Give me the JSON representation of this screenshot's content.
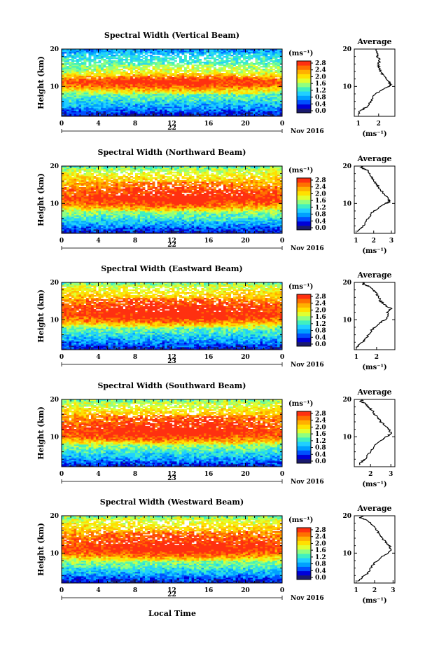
{
  "figure": {
    "xlabel_bottom": "Local Time",
    "date_label": "Nov 2016",
    "colorbar_unit": "(ms⁻¹)",
    "profile_title": "Average",
    "profile_xlabel": "(ms⁻¹)",
    "height_label": "Height (km)"
  },
  "colorbar": {
    "ticks": [
      "0.0",
      "0.4",
      "0.8",
      "1.2",
      "1.6",
      "2.0",
      "2.4",
      "2.8"
    ],
    "colors": [
      "#1a1a6e",
      "#0000d8",
      "#0050ff",
      "#00a0ff",
      "#20d0ff",
      "#40f0c0",
      "#90ff80",
      "#e0ff30",
      "#ffe000",
      "#ffb000",
      "#ff7000",
      "#ff3010"
    ]
  },
  "chart_data": [
    {
      "type": "heatmap",
      "title": "Spectral Width (Vertical Beam)",
      "xlabel": "",
      "ylabel": "Height (km)",
      "x_ticks": [
        "0",
        "4",
        "8",
        "12",
        "16",
        "20",
        "0"
      ],
      "x_day": "22",
      "y_ticks": [
        "20",
        "10"
      ],
      "xlim": [
        0,
        24
      ],
      "ylim": [
        2,
        20
      ],
      "value_profile": [
        [
          2,
          0.2
        ],
        [
          4,
          0.8
        ],
        [
          6,
          1.2
        ],
        [
          8,
          1.5
        ],
        [
          9.5,
          2.2
        ],
        [
          11,
          2.8
        ],
        [
          12,
          2.6
        ],
        [
          14,
          1.7
        ],
        [
          16,
          1.5
        ],
        [
          18,
          1.3
        ],
        [
          20,
          0.8
        ]
      ],
      "profile": {
        "title": "Average",
        "xlabel": "(ms⁻¹)",
        "x_ticks": [
          "1",
          "2"
        ],
        "x_tick_values": [
          1,
          2
        ],
        "xlim": [
          0.8,
          2.8
        ],
        "y_ticks": [
          "20",
          "10"
        ],
        "points": [
          [
            2.5,
            1.0
          ],
          [
            3.5,
            1.1
          ],
          [
            4.5,
            1.4
          ],
          [
            6,
            1.6
          ],
          [
            7.5,
            1.75
          ],
          [
            9,
            2.1
          ],
          [
            10,
            2.5
          ],
          [
            10.5,
            2.6
          ],
          [
            11,
            2.55
          ],
          [
            12,
            2.4
          ],
          [
            13,
            2.2
          ],
          [
            14,
            2.1
          ],
          [
            15,
            2.0
          ],
          [
            16,
            2.0
          ],
          [
            17,
            2.05
          ],
          [
            18,
            1.95
          ],
          [
            19,
            1.9
          ],
          [
            20,
            1.85
          ]
        ]
      }
    },
    {
      "type": "heatmap",
      "title": "Spectral Width (Northward Beam)",
      "xlabel": "",
      "ylabel": "Height (km)",
      "x_ticks": [
        "0",
        "4",
        "8",
        "12",
        "16",
        "20",
        "0"
      ],
      "x_day": "22",
      "y_ticks": [
        "20",
        "10"
      ],
      "xlim": [
        0,
        24
      ],
      "ylim": [
        2,
        20
      ],
      "value_profile": [
        [
          2,
          0.3
        ],
        [
          4,
          0.8
        ],
        [
          6,
          1.3
        ],
        [
          8,
          1.7
        ],
        [
          9.5,
          2.4
        ],
        [
          11,
          2.8
        ],
        [
          13,
          2.7
        ],
        [
          15,
          2.4
        ],
        [
          17,
          2.2
        ],
        [
          19,
          1.8
        ],
        [
          20,
          1.4
        ]
      ],
      "profile": {
        "title": "Average",
        "xlabel": "(ms⁻¹)",
        "x_ticks": [
          "1",
          "2",
          "3"
        ],
        "x_tick_values": [
          1,
          2,
          3
        ],
        "xlim": [
          0.9,
          3.2
        ],
        "y_ticks": [
          "20",
          "10"
        ],
        "points": [
          [
            2.5,
            1.1
          ],
          [
            3.5,
            1.3
          ],
          [
            4.5,
            1.5
          ],
          [
            6,
            1.7
          ],
          [
            7.5,
            1.9
          ],
          [
            9,
            2.3
          ],
          [
            10,
            2.7
          ],
          [
            10.5,
            2.9
          ],
          [
            11,
            2.85
          ],
          [
            12,
            2.7
          ],
          [
            13,
            2.5
          ],
          [
            14,
            2.3
          ],
          [
            15,
            2.2
          ],
          [
            16,
            2.0
          ],
          [
            17,
            1.9
          ],
          [
            18,
            1.8
          ],
          [
            19,
            1.6
          ],
          [
            19.5,
            1.3
          ],
          [
            20,
            1.4
          ]
        ]
      }
    },
    {
      "type": "heatmap",
      "title": "Spectral Width (Eastward Beam)",
      "xlabel": "",
      "ylabel": "Height (km)",
      "x_ticks": [
        "0",
        "4",
        "8",
        "12",
        "16",
        "20",
        "0"
      ],
      "x_day": "23",
      "y_ticks": [
        "20",
        "10"
      ],
      "xlim": [
        0,
        24
      ],
      "ylim": [
        2,
        20
      ],
      "value_profile": [
        [
          2,
          0.3
        ],
        [
          4,
          0.8
        ],
        [
          6,
          1.2
        ],
        [
          8,
          1.6
        ],
        [
          9.5,
          2.3
        ],
        [
          11,
          2.8
        ],
        [
          13,
          2.8
        ],
        [
          15,
          2.5
        ],
        [
          17,
          2.2
        ],
        [
          19,
          1.9
        ],
        [
          20,
          1.5
        ]
      ],
      "profile": {
        "title": "Average",
        "xlabel": "(ms⁻¹)",
        "x_ticks": [
          "1",
          "2"
        ],
        "x_tick_values": [
          1,
          2
        ],
        "xlim": [
          0.9,
          2.9
        ],
        "y_ticks": [
          "20",
          "10"
        ],
        "points": [
          [
            2.5,
            1.0
          ],
          [
            3.5,
            1.2
          ],
          [
            4.5,
            1.4
          ],
          [
            6,
            1.6
          ],
          [
            7.5,
            1.8
          ],
          [
            9,
            2.1
          ],
          [
            10,
            2.4
          ],
          [
            11,
            2.6
          ],
          [
            12,
            2.5
          ],
          [
            13,
            2.7
          ],
          [
            14,
            2.4
          ],
          [
            15,
            2.2
          ],
          [
            16,
            2.1
          ],
          [
            17,
            2.0
          ],
          [
            18,
            1.8
          ],
          [
            19,
            1.6
          ],
          [
            19.5,
            1.3
          ],
          [
            20,
            1.4
          ]
        ]
      }
    },
    {
      "type": "heatmap",
      "title": "Spectral Width (Southward Beam)",
      "xlabel": "",
      "ylabel": "Height (km)",
      "x_ticks": [
        "0",
        "4",
        "8",
        "12",
        "16",
        "20",
        "0"
      ],
      "x_day": "23",
      "y_ticks": [
        "20",
        "10"
      ],
      "xlim": [
        0,
        24
      ],
      "ylim": [
        2,
        20
      ],
      "value_profile": [
        [
          2,
          0.3
        ],
        [
          4,
          0.9
        ],
        [
          6,
          1.3
        ],
        [
          8,
          1.7
        ],
        [
          9.5,
          2.4
        ],
        [
          11,
          2.8
        ],
        [
          13,
          2.7
        ],
        [
          15,
          2.5
        ],
        [
          17,
          2.2
        ],
        [
          19,
          1.8
        ],
        [
          20,
          1.5
        ]
      ],
      "profile": {
        "title": "Average",
        "xlabel": "(ms⁻¹)",
        "x_ticks": [
          "2",
          "3"
        ],
        "x_tick_values": [
          2,
          3
        ],
        "xlim": [
          1.2,
          3.2
        ],
        "y_ticks": [
          "20",
          "10"
        ],
        "points": [
          [
            2.5,
            1.4
          ],
          [
            3.5,
            1.6
          ],
          [
            4.5,
            1.8
          ],
          [
            6,
            2.0
          ],
          [
            7.5,
            2.2
          ],
          [
            9,
            2.5
          ],
          [
            10,
            2.8
          ],
          [
            11,
            3.0
          ],
          [
            12,
            2.9
          ],
          [
            13,
            2.7
          ],
          [
            14,
            2.5
          ],
          [
            15,
            2.4
          ],
          [
            16,
            2.2
          ],
          [
            17,
            2.1
          ],
          [
            18,
            1.9
          ],
          [
            19,
            1.7
          ],
          [
            19.5,
            1.5
          ],
          [
            20,
            1.6
          ]
        ]
      }
    },
    {
      "type": "heatmap",
      "title": "Spectral Width (Westward Beam)",
      "xlabel": "Local Time",
      "ylabel": "Height (km)",
      "x_ticks": [
        "0",
        "4",
        "8",
        "12",
        "16",
        "20",
        "0"
      ],
      "x_day": "22",
      "y_ticks": [
        "20",
        "10"
      ],
      "xlim": [
        0,
        24
      ],
      "ylim": [
        2,
        20
      ],
      "value_profile": [
        [
          2,
          0.3
        ],
        [
          4,
          0.8
        ],
        [
          6,
          1.3
        ],
        [
          8,
          1.7
        ],
        [
          9.5,
          2.4
        ],
        [
          11,
          2.8
        ],
        [
          13,
          2.7
        ],
        [
          15,
          2.5
        ],
        [
          17,
          2.2
        ],
        [
          19,
          1.9
        ],
        [
          20,
          1.5
        ]
      ],
      "profile": {
        "title": "Average",
        "xlabel": "(ms⁻¹)",
        "x_ticks": [
          "1",
          "2",
          "3"
        ],
        "x_tick_values": [
          1,
          2,
          3
        ],
        "xlim": [
          0.9,
          3.1
        ],
        "y_ticks": [
          "20",
          "10"
        ],
        "points": [
          [
            2.5,
            1.1
          ],
          [
            3.5,
            1.3
          ],
          [
            4.5,
            1.6
          ],
          [
            6,
            1.8
          ],
          [
            7.5,
            2.0
          ],
          [
            9,
            2.4
          ],
          [
            10,
            2.7
          ],
          [
            11,
            2.9
          ],
          [
            12,
            2.8
          ],
          [
            13,
            2.6
          ],
          [
            14,
            2.4
          ],
          [
            15,
            2.3
          ],
          [
            16,
            2.1
          ],
          [
            17,
            2.0
          ],
          [
            18,
            1.8
          ],
          [
            19,
            1.5
          ],
          [
            19.5,
            1.2
          ],
          [
            20,
            1.4
          ]
        ]
      }
    }
  ]
}
